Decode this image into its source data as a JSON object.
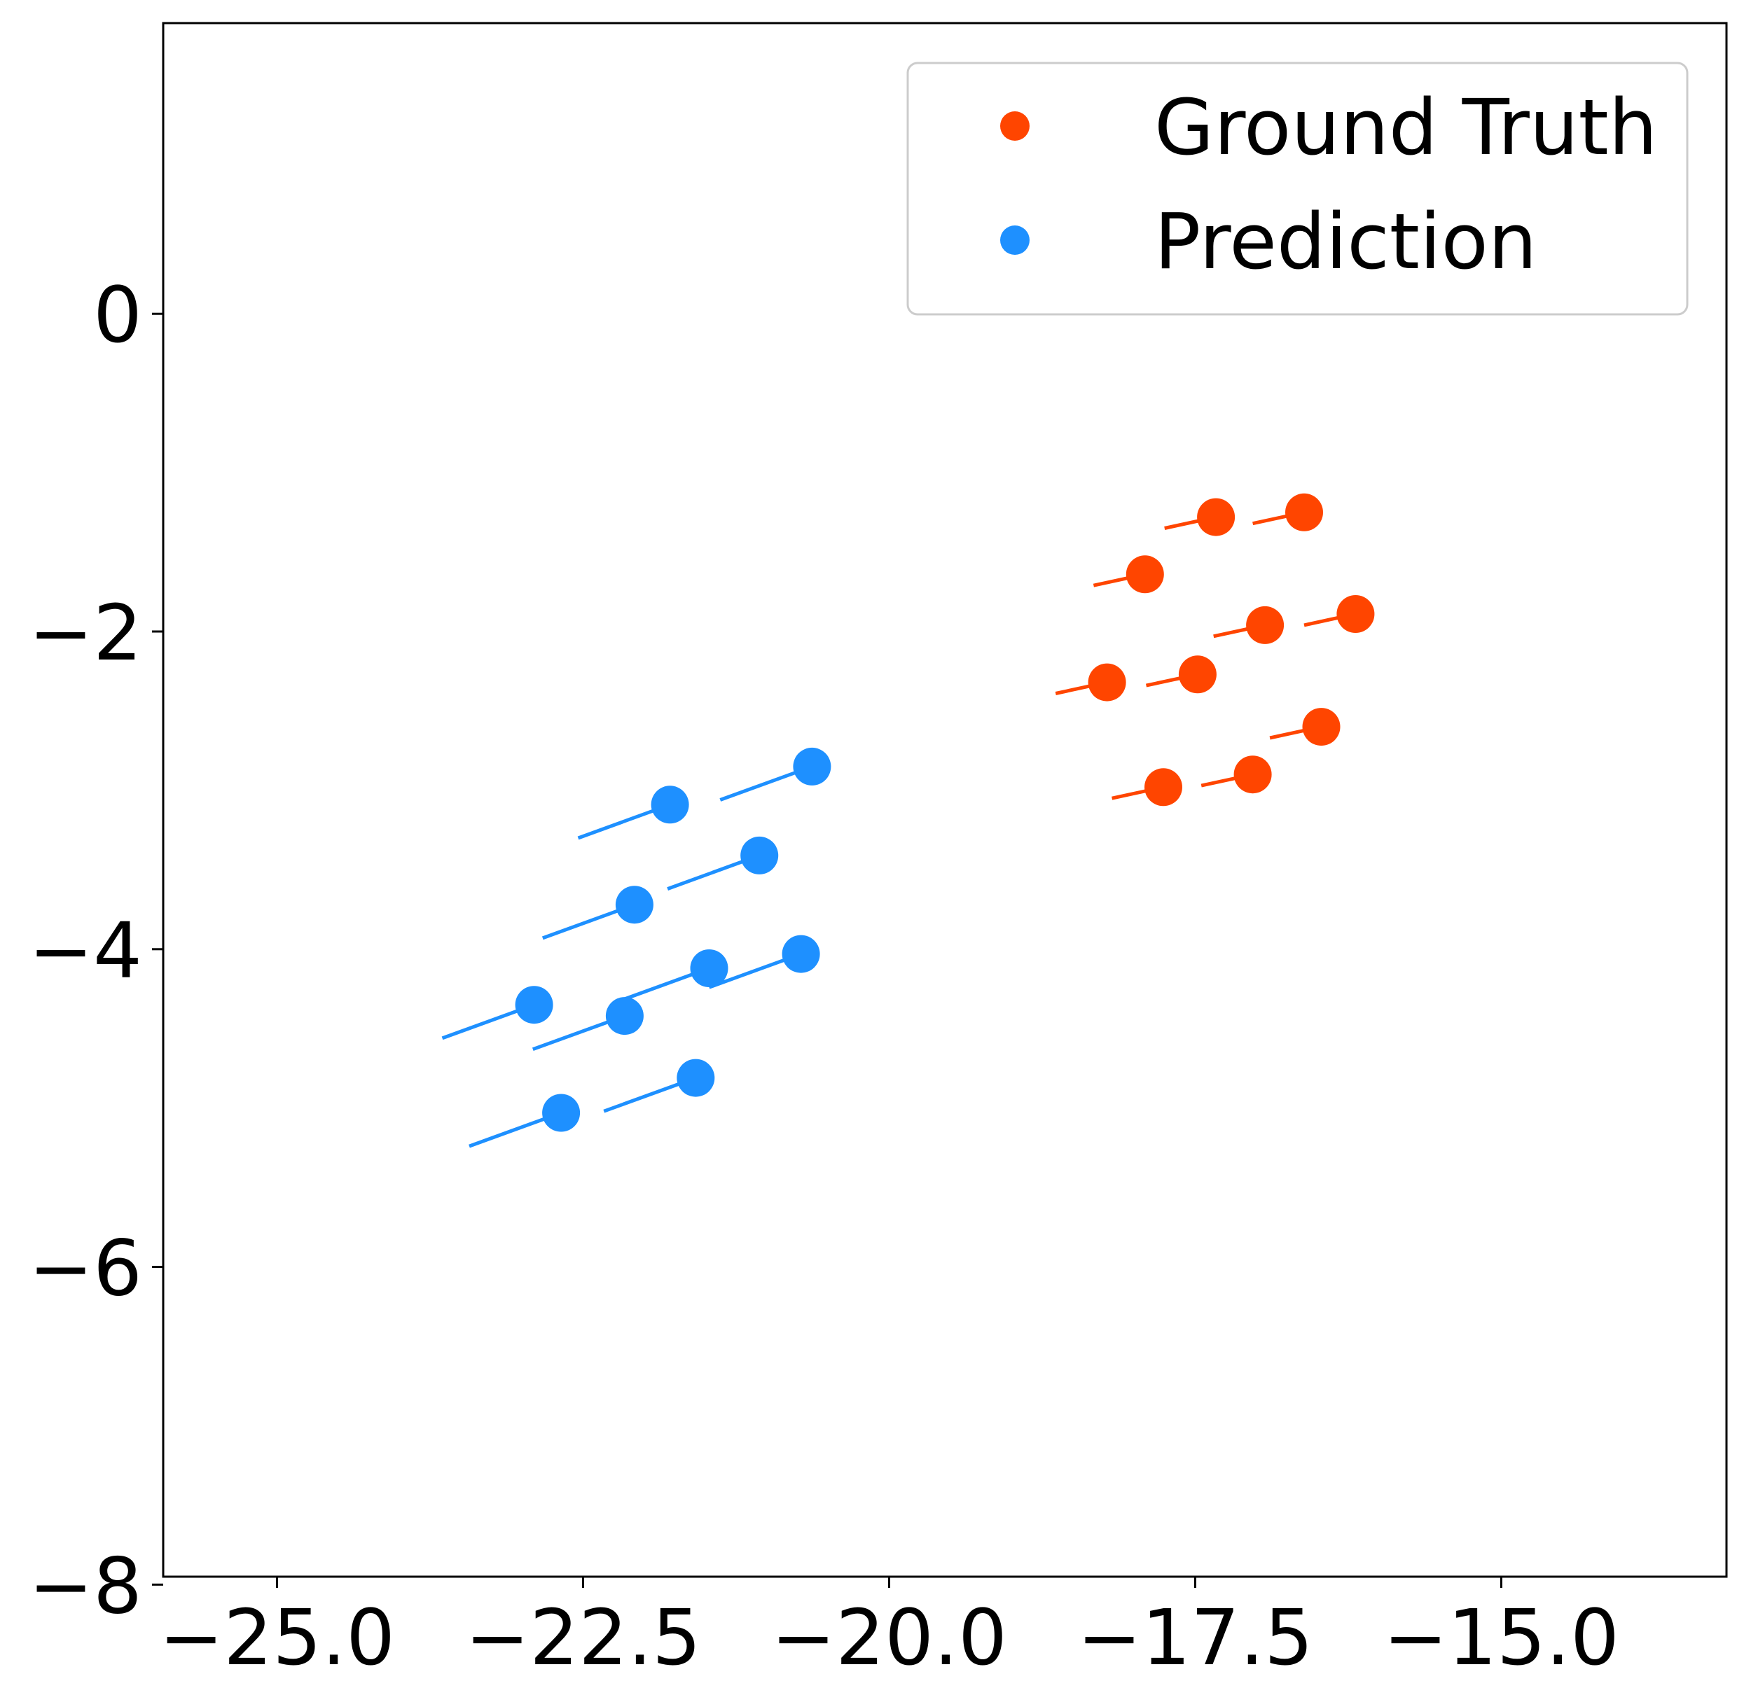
{
  "chart_data": {
    "type": "scatter",
    "title": "",
    "xlabel": "",
    "ylabel": "",
    "xlim": [
      -25.93,
      -13.16
    ],
    "ylim": [
      -7.95,
      1.83
    ],
    "x_ticks": [
      {
        "value": -25.0,
        "label": "−25.0"
      },
      {
        "value": -22.5,
        "label": "−22.5"
      },
      {
        "value": -20.0,
        "label": "−20.0"
      },
      {
        "value": -17.5,
        "label": "−17.5"
      },
      {
        "value": -15.0,
        "label": "−15.0"
      }
    ],
    "y_ticks": [
      {
        "value": 0,
        "label": "0"
      },
      {
        "value": -2,
        "label": "−2"
      },
      {
        "value": -4,
        "label": "−4"
      },
      {
        "value": -6,
        "label": "−6"
      },
      {
        "value": -8,
        "label": "−8"
      }
    ],
    "grid": false,
    "legend": {
      "position": "top-right"
    },
    "series": [
      {
        "name": "Ground Truth",
        "color": "#ff4500",
        "points": [
          {
            "x": -17.33,
            "y": -1.28,
            "tail": [
              -17.75,
              -1.35
            ]
          },
          {
            "x": -16.61,
            "y": -1.25,
            "tail": [
              -17.03,
              -1.32
            ]
          },
          {
            "x": -17.91,
            "y": -1.64,
            "tail": [
              -18.33,
              -1.71
            ]
          },
          {
            "x": -16.93,
            "y": -1.96,
            "tail": [
              -17.35,
              -2.03
            ]
          },
          {
            "x": -16.19,
            "y": -1.89,
            "tail": [
              -16.61,
              -1.96
            ]
          },
          {
            "x": -18.22,
            "y": -2.32,
            "tail": [
              -18.64,
              -2.39
            ]
          },
          {
            "x": -17.48,
            "y": -2.27,
            "tail": [
              -17.9,
              -2.34
            ]
          },
          {
            "x": -16.47,
            "y": -2.6,
            "tail": [
              -16.89,
              -2.67
            ]
          },
          {
            "x": -17.76,
            "y": -2.98,
            "tail": [
              -18.18,
              -3.05
            ]
          },
          {
            "x": -17.03,
            "y": -2.9,
            "tail": [
              -17.45,
              -2.97
            ]
          }
        ]
      },
      {
        "name": "Prediction",
        "color": "#1e90ff",
        "points": [
          {
            "x": -20.63,
            "y": -2.85,
            "tail": [
              -21.38,
              -3.06
            ]
          },
          {
            "x": -21.79,
            "y": -3.09,
            "tail": [
              -22.54,
              -3.3
            ]
          },
          {
            "x": -21.06,
            "y": -3.41,
            "tail": [
              -21.81,
              -3.62
            ]
          },
          {
            "x": -22.08,
            "y": -3.72,
            "tail": [
              -22.83,
              -3.93
            ]
          },
          {
            "x": -21.47,
            "y": -4.12,
            "tail": [
              -22.22,
              -4.33
            ]
          },
          {
            "x": -20.72,
            "y": -4.03,
            "tail": [
              -21.47,
              -4.24
            ]
          },
          {
            "x": -22.9,
            "y": -4.35,
            "tail": [
              -23.65,
              -4.56
            ]
          },
          {
            "x": -22.16,
            "y": -4.42,
            "tail": [
              -22.91,
              -4.63
            ]
          },
          {
            "x": -21.58,
            "y": -4.81,
            "tail": [
              -22.33,
              -5.02
            ]
          },
          {
            "x": -22.68,
            "y": -5.03,
            "tail": [
              -23.43,
              -5.24
            ]
          }
        ]
      }
    ]
  }
}
